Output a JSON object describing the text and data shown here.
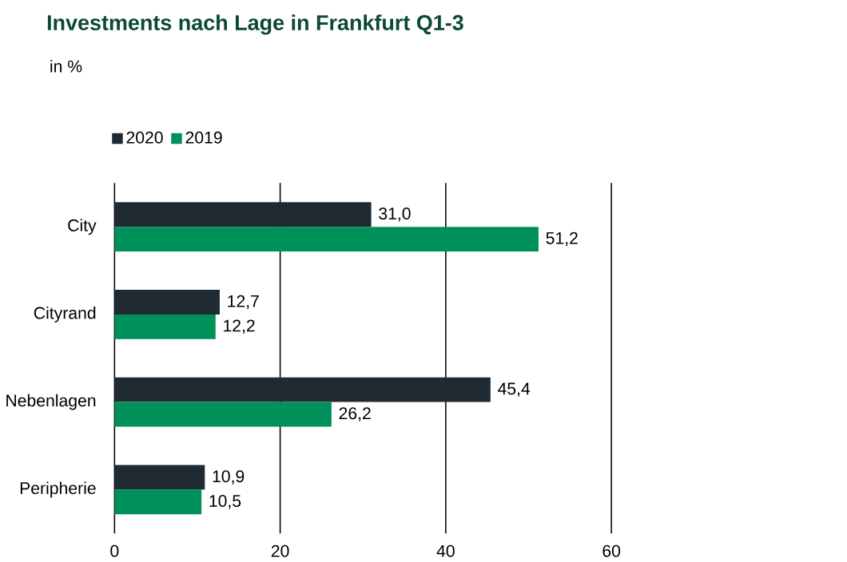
{
  "chart_data": {
    "type": "bar",
    "orientation": "horizontal",
    "title": "Investments nach Lage in Frankfurt Q1-3",
    "subtitle": "in %",
    "categories": [
      "City",
      "Cityrand",
      "Nebenlagen",
      "Peripherie"
    ],
    "series": [
      {
        "name": "2020",
        "color": "#1f2a33",
        "values": [
          31.0,
          12.7,
          45.4,
          10.9
        ],
        "value_labels": [
          "31,0",
          "12,7",
          "45,4",
          "10,9"
        ]
      },
      {
        "name": "2019",
        "color": "#00915a",
        "values": [
          51.2,
          12.2,
          26.2,
          10.5
        ],
        "value_labels": [
          "51,2",
          "12,2",
          "26,2",
          "10,5"
        ]
      }
    ],
    "xlim": [
      0,
      60
    ],
    "xticks": [
      0,
      20,
      40,
      60
    ],
    "grid": "x",
    "legend": "top left"
  }
}
